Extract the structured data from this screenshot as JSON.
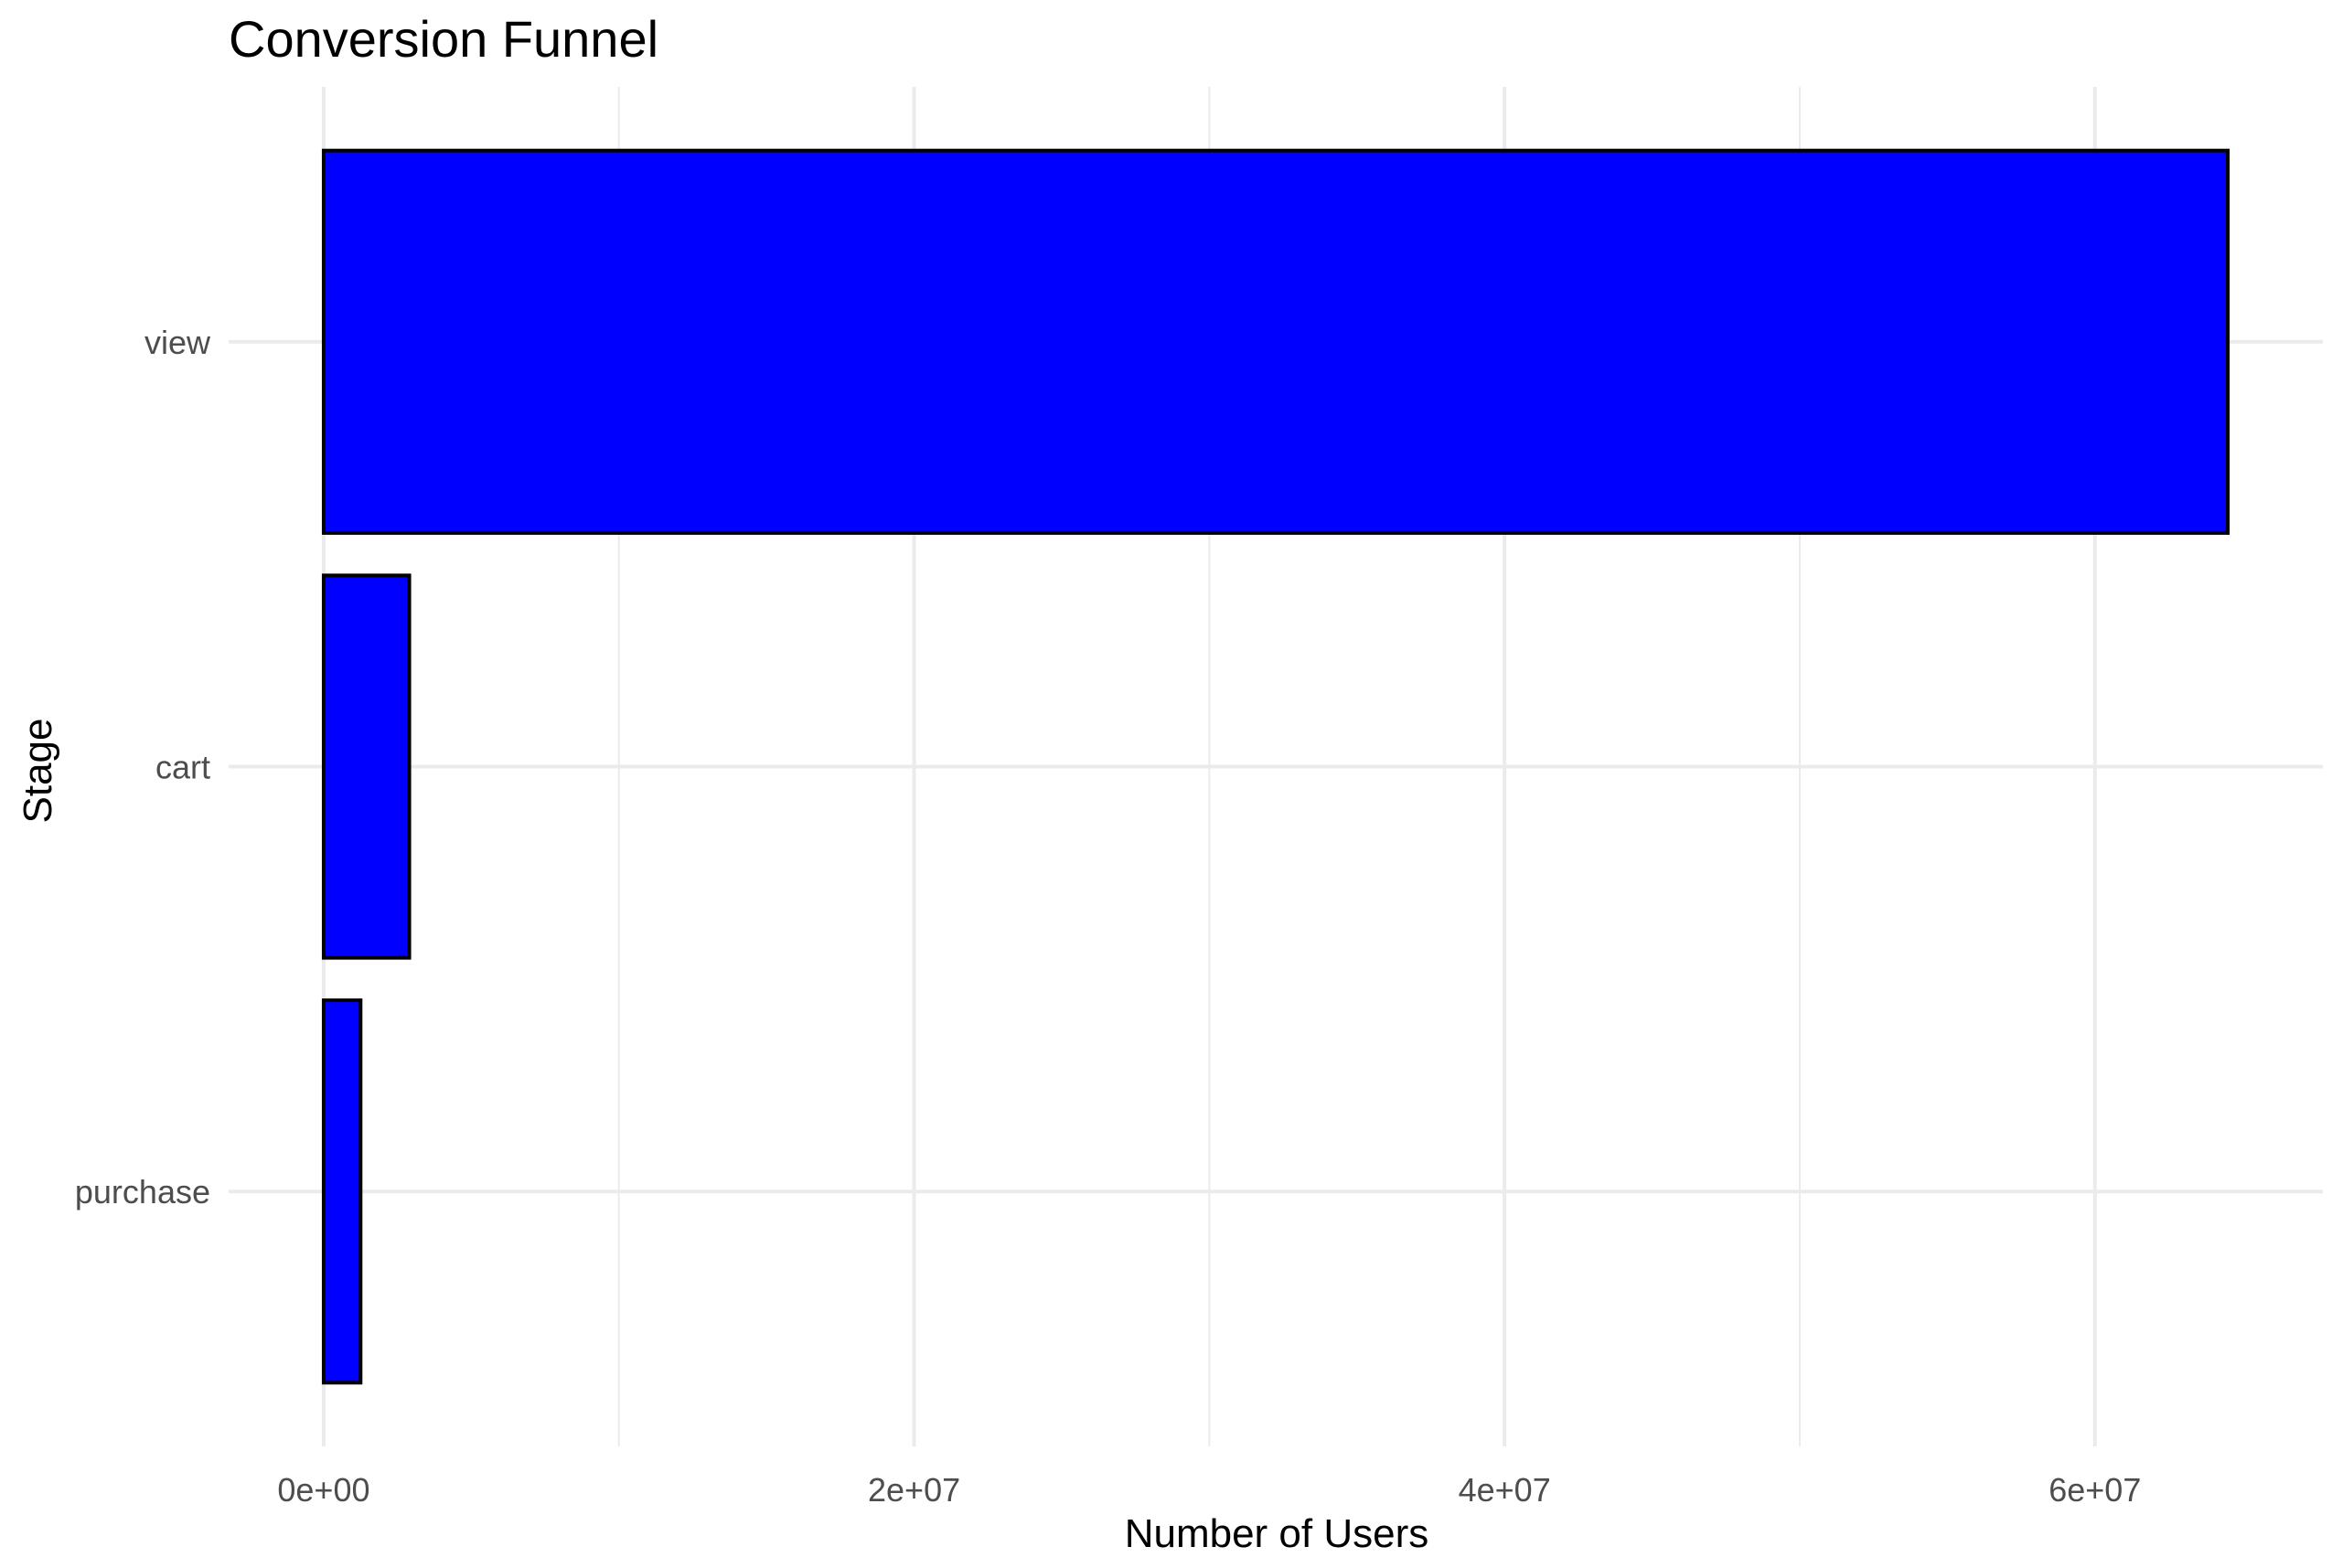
{
  "chart_data": {
    "type": "bar",
    "orientation": "horizontal",
    "title": "Conversion Funnel",
    "xlabel": "Number of Users",
    "ylabel": "Stage",
    "categories": [
      "view",
      "cart",
      "purchase"
    ],
    "values": [
      64500000,
      2900000,
      1250000
    ],
    "x_ticks": [
      0,
      20000000,
      40000000,
      60000000
    ],
    "x_tick_labels": [
      "0e+00",
      "2e+07",
      "4e+07",
      "6e+07"
    ],
    "xlim": [
      -3220000,
      67720000
    ],
    "grid": true,
    "legend": "none",
    "bar_color": "#0000ff",
    "bar_outline_color": "#000000",
    "grid_color": "#ebebeb"
  }
}
